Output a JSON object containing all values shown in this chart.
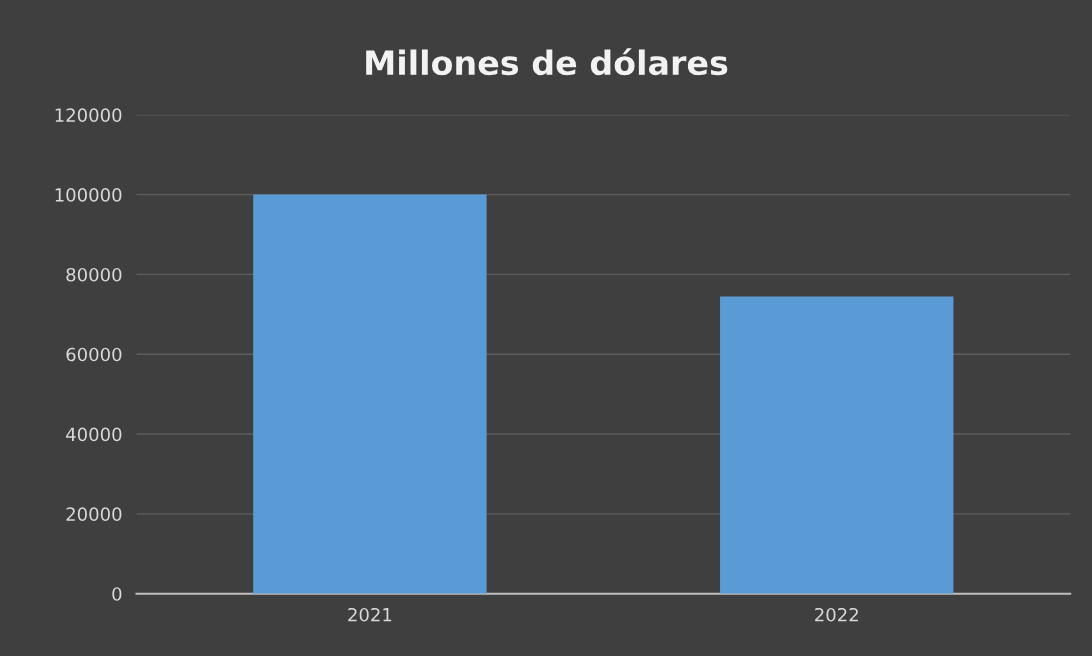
{
  "chart_data": {
    "type": "bar",
    "title": "Millones de dólares",
    "categories": [
      "2021",
      "2022"
    ],
    "values": [
      100000,
      74500
    ],
    "color": "#5b9bd5",
    "ylim": [
      0,
      120000
    ],
    "yticks": [
      0,
      20000,
      40000,
      60000,
      80000,
      100000,
      120000
    ],
    "grid": "y"
  }
}
